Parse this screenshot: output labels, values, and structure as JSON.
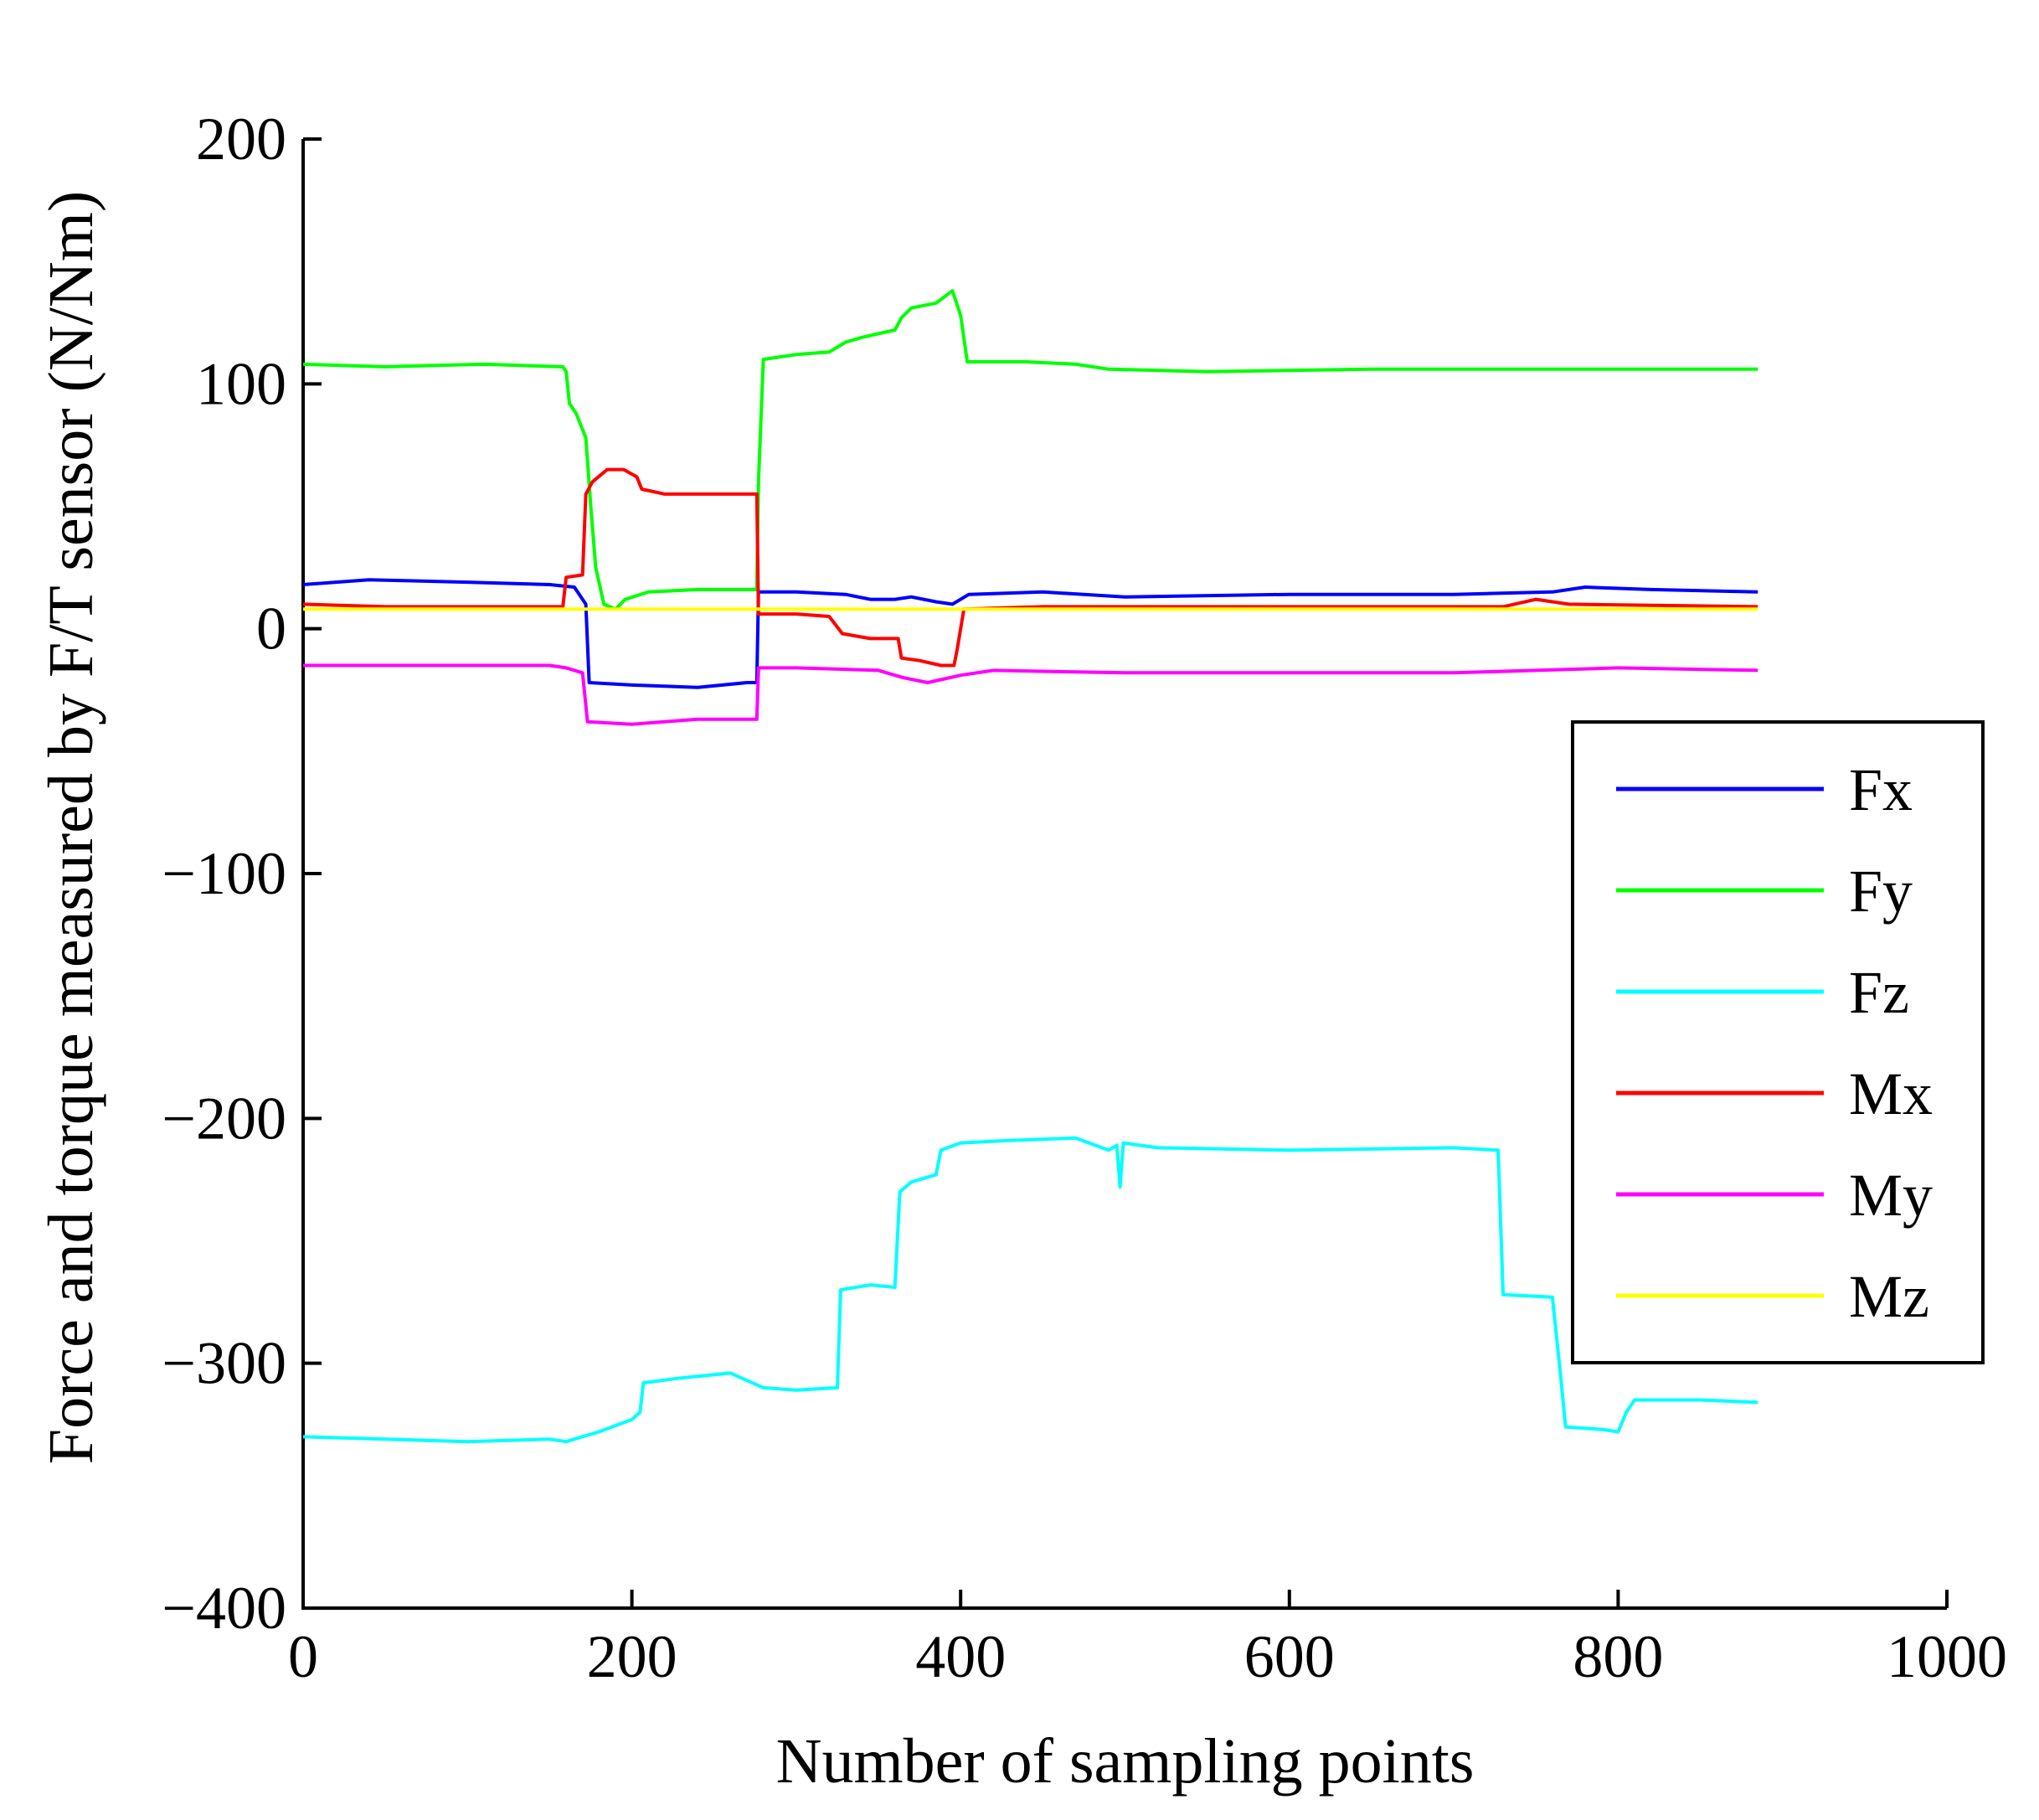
{
  "chart_data": {
    "type": "line",
    "title": "",
    "xlabel": "Number of sampling points",
    "ylabel": "Force and torque measured by F/T sensor (N/Nm)",
    "xlim": [
      0,
      1000
    ],
    "ylim": [
      -400,
      200
    ],
    "xticks": [
      0,
      200,
      400,
      600,
      800,
      1000
    ],
    "xtick_labels": [
      "0",
      "200",
      "400",
      "600",
      "800",
      "1000"
    ],
    "yticks": [
      200,
      100,
      0,
      -100,
      -200,
      -300,
      -400
    ],
    "ytick_labels": [
      "200",
      "100",
      "0",
      "−100",
      "−200",
      "−300",
      "−400"
    ],
    "grid": false,
    "legend_position": "right",
    "series": [
      {
        "name": "Fx",
        "color": "#0000ff",
        "points": [
          [
            0,
            18
          ],
          [
            40,
            20
          ],
          [
            100,
            19
          ],
          [
            150,
            18
          ],
          [
            165,
            17
          ],
          [
            172,
            10
          ],
          [
            174,
            -22
          ],
          [
            200,
            -23
          ],
          [
            240,
            -24
          ],
          [
            270,
            -22
          ],
          [
            276,
            -22
          ],
          [
            277,
            15
          ],
          [
            300,
            15
          ],
          [
            330,
            14
          ],
          [
            345,
            12
          ],
          [
            360,
            12
          ],
          [
            370,
            13
          ],
          [
            385,
            11
          ],
          [
            395,
            10
          ],
          [
            405,
            14
          ],
          [
            450,
            15
          ],
          [
            500,
            13
          ],
          [
            600,
            14
          ],
          [
            700,
            14
          ],
          [
            760,
            15
          ],
          [
            780,
            17
          ],
          [
            820,
            16
          ],
          [
            885,
            15
          ]
        ]
      },
      {
        "name": "Fy",
        "color": "#00ff00",
        "points": [
          [
            0,
            108
          ],
          [
            50,
            107
          ],
          [
            110,
            108
          ],
          [
            158,
            107
          ],
          [
            160,
            105
          ],
          [
            162,
            92
          ],
          [
            166,
            88
          ],
          [
            172,
            78
          ],
          [
            175,
            50
          ],
          [
            178,
            25
          ],
          [
            183,
            10
          ],
          [
            190,
            8
          ],
          [
            196,
            12
          ],
          [
            210,
            15
          ],
          [
            240,
            16
          ],
          [
            276,
            16
          ],
          [
            277,
            60
          ],
          [
            280,
            110
          ],
          [
            300,
            112
          ],
          [
            320,
            113
          ],
          [
            330,
            117
          ],
          [
            340,
            119
          ],
          [
            360,
            122
          ],
          [
            364,
            127
          ],
          [
            370,
            131
          ],
          [
            385,
            133
          ],
          [
            395,
            138
          ],
          [
            400,
            128
          ],
          [
            404,
            109
          ],
          [
            440,
            109
          ],
          [
            470,
            108
          ],
          [
            490,
            106
          ],
          [
            550,
            105
          ],
          [
            650,
            106
          ],
          [
            750,
            106
          ],
          [
            850,
            106
          ],
          [
            885,
            106
          ]
        ]
      },
      {
        "name": "Fz",
        "color": "#00ffff",
        "points": [
          [
            0,
            -330
          ],
          [
            50,
            -331
          ],
          [
            100,
            -332
          ],
          [
            150,
            -331
          ],
          [
            160,
            -332
          ],
          [
            180,
            -328
          ],
          [
            200,
            -323
          ],
          [
            205,
            -320
          ],
          [
            207,
            -308
          ],
          [
            230,
            -306
          ],
          [
            260,
            -304
          ],
          [
            280,
            -310
          ],
          [
            300,
            -311
          ],
          [
            325,
            -310
          ],
          [
            327,
            -270
          ],
          [
            345,
            -268
          ],
          [
            360,
            -269
          ],
          [
            363,
            -230
          ],
          [
            370,
            -226
          ],
          [
            385,
            -223
          ],
          [
            388,
            -213
          ],
          [
            400,
            -210
          ],
          [
            430,
            -209
          ],
          [
            470,
            -208
          ],
          [
            490,
            -213
          ],
          [
            495,
            -211
          ],
          [
            497,
            -228
          ],
          [
            499,
            -210
          ],
          [
            520,
            -212
          ],
          [
            600,
            -213
          ],
          [
            700,
            -212
          ],
          [
            727,
            -213
          ],
          [
            730,
            -272
          ],
          [
            760,
            -273
          ],
          [
            765,
            -305
          ],
          [
            768,
            -326
          ],
          [
            790,
            -327
          ],
          [
            800,
            -328
          ],
          [
            805,
            -320
          ],
          [
            810,
            -315
          ],
          [
            850,
            -315
          ],
          [
            885,
            -316
          ]
        ]
      },
      {
        "name": "Mx",
        "color": "#ff0000",
        "points": [
          [
            0,
            10
          ],
          [
            50,
            9
          ],
          [
            100,
            9
          ],
          [
            150,
            9
          ],
          [
            158,
            9
          ],
          [
            160,
            21
          ],
          [
            170,
            22
          ],
          [
            172,
            55
          ],
          [
            176,
            60
          ],
          [
            185,
            65
          ],
          [
            195,
            65
          ],
          [
            203,
            62
          ],
          [
            206,
            57
          ],
          [
            220,
            55
          ],
          [
            276,
            55
          ],
          [
            277,
            6
          ],
          [
            300,
            6
          ],
          [
            320,
            5
          ],
          [
            328,
            -2
          ],
          [
            345,
            -4
          ],
          [
            362,
            -4
          ],
          [
            364,
            -12
          ],
          [
            375,
            -13
          ],
          [
            388,
            -15
          ],
          [
            396,
            -15
          ],
          [
            398,
            -8
          ],
          [
            402,
            8
          ],
          [
            450,
            9
          ],
          [
            600,
            9
          ],
          [
            700,
            9
          ],
          [
            730,
            9
          ],
          [
            750,
            12
          ],
          [
            770,
            10
          ],
          [
            885,
            9
          ]
        ]
      },
      {
        "name": "My",
        "color": "#ff00ff",
        "points": [
          [
            0,
            -15
          ],
          [
            80,
            -15
          ],
          [
            150,
            -15
          ],
          [
            160,
            -16
          ],
          [
            170,
            -18
          ],
          [
            173,
            -38
          ],
          [
            200,
            -39
          ],
          [
            240,
            -37
          ],
          [
            276,
            -37
          ],
          [
            277,
            -16
          ],
          [
            300,
            -16
          ],
          [
            350,
            -17
          ],
          [
            365,
            -20
          ],
          [
            380,
            -22
          ],
          [
            400,
            -19
          ],
          [
            420,
            -17
          ],
          [
            500,
            -18
          ],
          [
            600,
            -18
          ],
          [
            700,
            -18
          ],
          [
            750,
            -17
          ],
          [
            800,
            -16
          ],
          [
            885,
            -17
          ]
        ]
      },
      {
        "name": "Mz",
        "color": "#ffff00",
        "points": [
          [
            0,
            8
          ],
          [
            100,
            8
          ],
          [
            200,
            8
          ],
          [
            300,
            8
          ],
          [
            400,
            8
          ],
          [
            500,
            8
          ],
          [
            600,
            8
          ],
          [
            700,
            8
          ],
          [
            800,
            8
          ],
          [
            885,
            8
          ]
        ]
      }
    ]
  }
}
